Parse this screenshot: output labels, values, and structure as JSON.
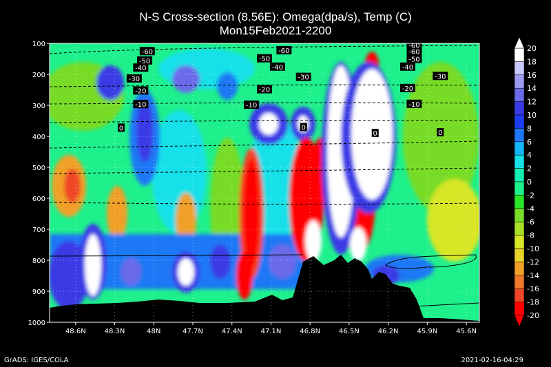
{
  "chart_data": {
    "type": "heatmap",
    "title": "N-S Cross-section (8.56E): Omega(dpa/s), Temp (C)",
    "subtitle": "Mon15Feb2021-2200",
    "x_ticks": [
      "48.6N",
      "48.3N",
      "48N",
      "47.7N",
      "47.4N",
      "47.1N",
      "46.8N",
      "46.5N",
      "46.2N",
      "45.9N",
      "45.6N"
    ],
    "x_range": [
      48.8,
      45.5
    ],
    "y_ticks": [
      100,
      200,
      300,
      400,
      500,
      600,
      700,
      800,
      900,
      1000
    ],
    "y_range": [
      100,
      1000
    ],
    "colorbar": {
      "labels": [
        20,
        18,
        16,
        14,
        12,
        10,
        8,
        6,
        4,
        2,
        0,
        -2,
        -4,
        -6,
        -8,
        -10,
        -12,
        -14,
        -16,
        -18,
        -20
      ],
      "colors": [
        "#ffffff",
        "#c8c8ff",
        "#9b9bf0",
        "#6a6aea",
        "#3a3ae6",
        "#1e3cf0",
        "#1e78f5",
        "#14b4f5",
        "#14e0e8",
        "#14f0b4",
        "#1ef08c",
        "#28e628",
        "#78dc28",
        "#a8e028",
        "#d8e628",
        "#e6d228",
        "#f0a028",
        "#f07828",
        "#f04628",
        "#ff0000"
      ]
    },
    "temperature_contour_labels": [
      {
        "value": "-60",
        "lat": 48.05,
        "p": 125
      },
      {
        "value": "-60",
        "lat": 47.0,
        "p": 122
      },
      {
        "value": "-60",
        "lat": 46.0,
        "p": 125
      },
      {
        "value": "-60",
        "lat": 46.0,
        "p": 105
      },
      {
        "value": "-50",
        "lat": 48.07,
        "p": 155
      },
      {
        "value": "-50",
        "lat": 47.15,
        "p": 148
      },
      {
        "value": "-50",
        "lat": 46.0,
        "p": 150
      },
      {
        "value": "-40",
        "lat": 48.1,
        "p": 178
      },
      {
        "value": "-40",
        "lat": 47.05,
        "p": 175
      },
      {
        "value": "-40",
        "lat": 46.05,
        "p": 175
      },
      {
        "value": "-30",
        "lat": 48.15,
        "p": 213
      },
      {
        "value": "-30",
        "lat": 46.85,
        "p": 208
      },
      {
        "value": "-30",
        "lat": 45.8,
        "p": 205
      },
      {
        "value": "-20",
        "lat": 48.1,
        "p": 252
      },
      {
        "value": "-20",
        "lat": 47.15,
        "p": 248
      },
      {
        "value": "-20",
        "lat": 46.05,
        "p": 244
      },
      {
        "value": "-10",
        "lat": 48.1,
        "p": 296
      },
      {
        "value": "-10",
        "lat": 47.25,
        "p": 298
      },
      {
        "value": "-10",
        "lat": 46.0,
        "p": 295
      },
      {
        "value": "0",
        "lat": 48.25,
        "p": 372
      },
      {
        "value": "0",
        "lat": 46.85,
        "p": 370
      },
      {
        "value": "0",
        "lat": 46.3,
        "p": 389
      },
      {
        "value": "0",
        "lat": 45.8,
        "p": 387
      }
    ]
  },
  "footer": {
    "left": "GrADS: IGES/COLA",
    "right": "2021-02-16-04:29"
  }
}
